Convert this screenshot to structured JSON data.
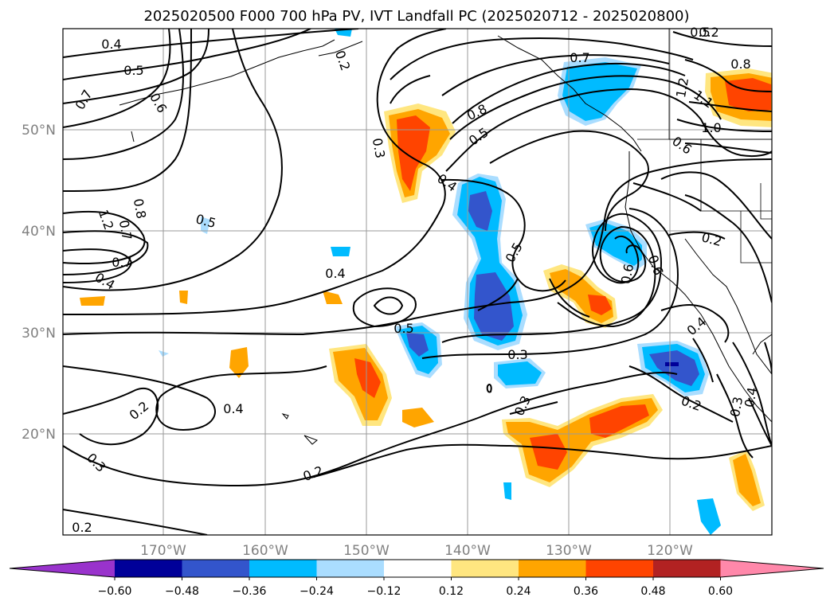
{
  "title": "2025020500 F000 700 hPa PV, IVT Landfall PC (2025020712 - 2025020800)",
  "map": {
    "lon_range": [
      -180,
      -110
    ],
    "lat_range": [
      10,
      60
    ],
    "lat_labels": [
      "50°N",
      "40°N",
      "30°N",
      "20°N"
    ],
    "lon_labels": [
      "170°W",
      "160°W",
      "150°W",
      "140°W",
      "130°W",
      "120°W"
    ],
    "gridlines": true
  },
  "contour_labels": [
    "0.4",
    "0.5",
    "0.6",
    "0.7",
    "0.2",
    "0.2",
    "0.5",
    "0.8",
    "0.3",
    "0.4",
    "0.5",
    "0.7",
    "0.8",
    "1.2",
    "1.1",
    "1.0",
    "0.6",
    "0.5",
    "0.7",
    "0.4",
    "0.8",
    "1.2",
    "0.7",
    "0.5",
    "0.4",
    "0.4",
    "0.5",
    "0.3",
    "0.3",
    "0.2",
    "0.4",
    "0.2",
    "0.3",
    "0.4",
    "0.2",
    "0.2",
    "0.3",
    "0.3",
    "0.2",
    "0.6",
    "0.6"
  ],
  "colorbar": {
    "ticks": [
      "−0.60",
      "−0.48",
      "−0.36",
      "−0.24",
      "−0.12",
      "0.12",
      "0.24",
      "0.36",
      "0.48",
      "0.60"
    ],
    "colors": [
      "#9933cc",
      "#000099",
      "#3355cc",
      "#00bbff",
      "#aaddff",
      "#ffffff",
      "#ffe680",
      "#ffa500",
      "#ff4400",
      "#b22222",
      "#ff88aa"
    ]
  }
}
